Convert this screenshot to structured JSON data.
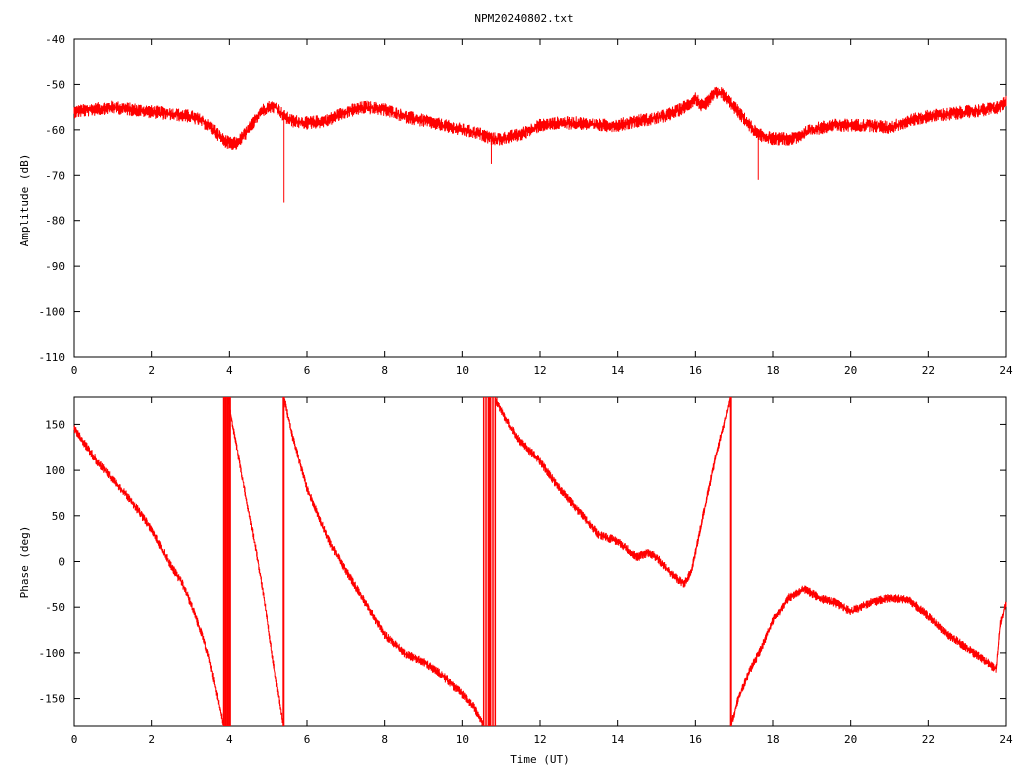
{
  "page_title": "NPM20240802.txt",
  "chart_data": [
    {
      "type": "line",
      "title": "NPM20240802.txt",
      "xlabel": "",
      "ylabel": "Amplitude (dB)",
      "xlim": [
        0,
        24
      ],
      "ylim": [
        -110,
        -40
      ],
      "x_ticks": [
        0,
        2,
        4,
        6,
        8,
        10,
        12,
        14,
        16,
        18,
        20,
        22,
        24
      ],
      "y_ticks": [
        -40,
        -50,
        -60,
        -70,
        -80,
        -90,
        -100,
        -110
      ],
      "color": "#ff0000",
      "series": [
        {
          "x": [
            0,
            0.5,
            1,
            1.5,
            2,
            2.5,
            3,
            3.3,
            3.6,
            3.8,
            4.0,
            4.2,
            4.5,
            4.8,
            5.0,
            5.2,
            5.4,
            5.6,
            6.0,
            6.5,
            7.0,
            7.5,
            8.0,
            8.5,
            9.0,
            9.5,
            10.0,
            10.5,
            10.8,
            11.0,
            11.5,
            12.0,
            12.5,
            13.0,
            13.5,
            14.0,
            14.5,
            15.0,
            15.5,
            15.8,
            16.0,
            16.2,
            16.5,
            16.7,
            17.0,
            17.3,
            17.6,
            18.0,
            18.5,
            19.0,
            19.5,
            20.0,
            20.5,
            21.0,
            21.5,
            22.0,
            22.5,
            23.0,
            23.5,
            23.8,
            24.0
          ],
          "y": [
            -56,
            -55.5,
            -55,
            -55.5,
            -56,
            -56.5,
            -57,
            -58,
            -60,
            -62,
            -63,
            -63,
            -60,
            -56,
            -55,
            -55,
            -57,
            -58,
            -58.5,
            -58,
            -56,
            -55,
            -55.5,
            -57,
            -58,
            -59,
            -60,
            -61,
            -62,
            -62,
            -61,
            -59,
            -58.5,
            -58.5,
            -59,
            -59,
            -58,
            -57.5,
            -56,
            -54.5,
            -53,
            -55,
            -52,
            -52,
            -55,
            -58,
            -61,
            -62,
            -62,
            -60,
            -59,
            -59,
            -59,
            -59.5,
            -58,
            -57,
            -56.5,
            -56,
            -55.5,
            -55,
            -54
          ],
          "noise": 1.5,
          "spikes": [
            {
              "x": 5.4,
              "y": -76
            },
            {
              "x": 10.75,
              "y": -67.5
            },
            {
              "x": 17.62,
              "y": -71
            }
          ]
        }
      ]
    },
    {
      "type": "line",
      "title": "",
      "xlabel": "Time (UT)",
      "ylabel": "Phase (deg)",
      "xlim": [
        0,
        24
      ],
      "ylim": [
        -180,
        180
      ],
      "x_ticks": [
        0,
        2,
        4,
        6,
        8,
        10,
        12,
        14,
        16,
        18,
        20,
        22,
        24
      ],
      "y_ticks": [
        150,
        100,
        50,
        0,
        -50,
        -100,
        -150
      ],
      "color": "#ff0000",
      "series": [
        {
          "segments": [
            {
              "x": [
                0,
                0.5,
                1.0,
                1.5,
                2.0,
                2.5,
                2.8,
                3.0,
                3.3,
                3.5,
                3.7,
                3.85
              ],
              "y": [
                145,
                115,
                90,
                65,
                35,
                -5,
                -25,
                -45,
                -80,
                -110,
                -150,
                -180
              ]
            },
            {
              "x": [
                3.95,
                4.1,
                4.3,
                4.5,
                4.7,
                4.9,
                5.1,
                5.38
              ],
              "y": [
                180,
                145,
                100,
                55,
                10,
                -40,
                -100,
                -180
              ]
            },
            {
              "x": [
                5.4,
                5.6,
                5.8,
                6.0,
                6.3,
                6.6,
                7.0,
                7.5,
                8.0,
                8.5,
                9.0,
                9.5,
                10.0,
                10.3,
                10.55
              ],
              "y": [
                180,
                140,
                110,
                80,
                50,
                20,
                -10,
                -45,
                -80,
                -100,
                -110,
                -125,
                -145,
                -160,
                -178
              ]
            },
            {
              "x": [
                10.85,
                11.2,
                11.5,
                12.0,
                12.5,
                13.0,
                13.5,
                14.0,
                14.5,
                14.8,
                15.0,
                15.3,
                15.7,
                15.9,
                16.2,
                16.5,
                16.8,
                16.9
              ],
              "y": [
                178,
                150,
                130,
                110,
                80,
                55,
                30,
                22,
                5,
                10,
                5,
                -10,
                -25,
                -10,
                50,
                110,
                160,
                180
              ]
            },
            {
              "x": [
                16.92,
                17.1,
                17.4,
                17.7,
                18.0,
                18.4,
                18.8,
                19.2,
                19.6,
                20.0,
                20.5,
                21.0,
                21.5,
                22.0,
                22.5,
                23.0,
                23.5,
                23.75,
                23.85,
                24.0
              ],
              "y": [
                -178,
                -150,
                -120,
                -95,
                -65,
                -40,
                -30,
                -40,
                -45,
                -55,
                -45,
                -40,
                -42,
                -60,
                -80,
                -95,
                -110,
                -118,
                -70,
                -45
              ]
            }
          ],
          "noise": 5,
          "wrap_bands": [
            {
              "x0": 3.85,
              "x1": 4.02
            },
            {
              "x0": 10.55,
              "x1": 10.85
            }
          ]
        }
      ]
    }
  ]
}
